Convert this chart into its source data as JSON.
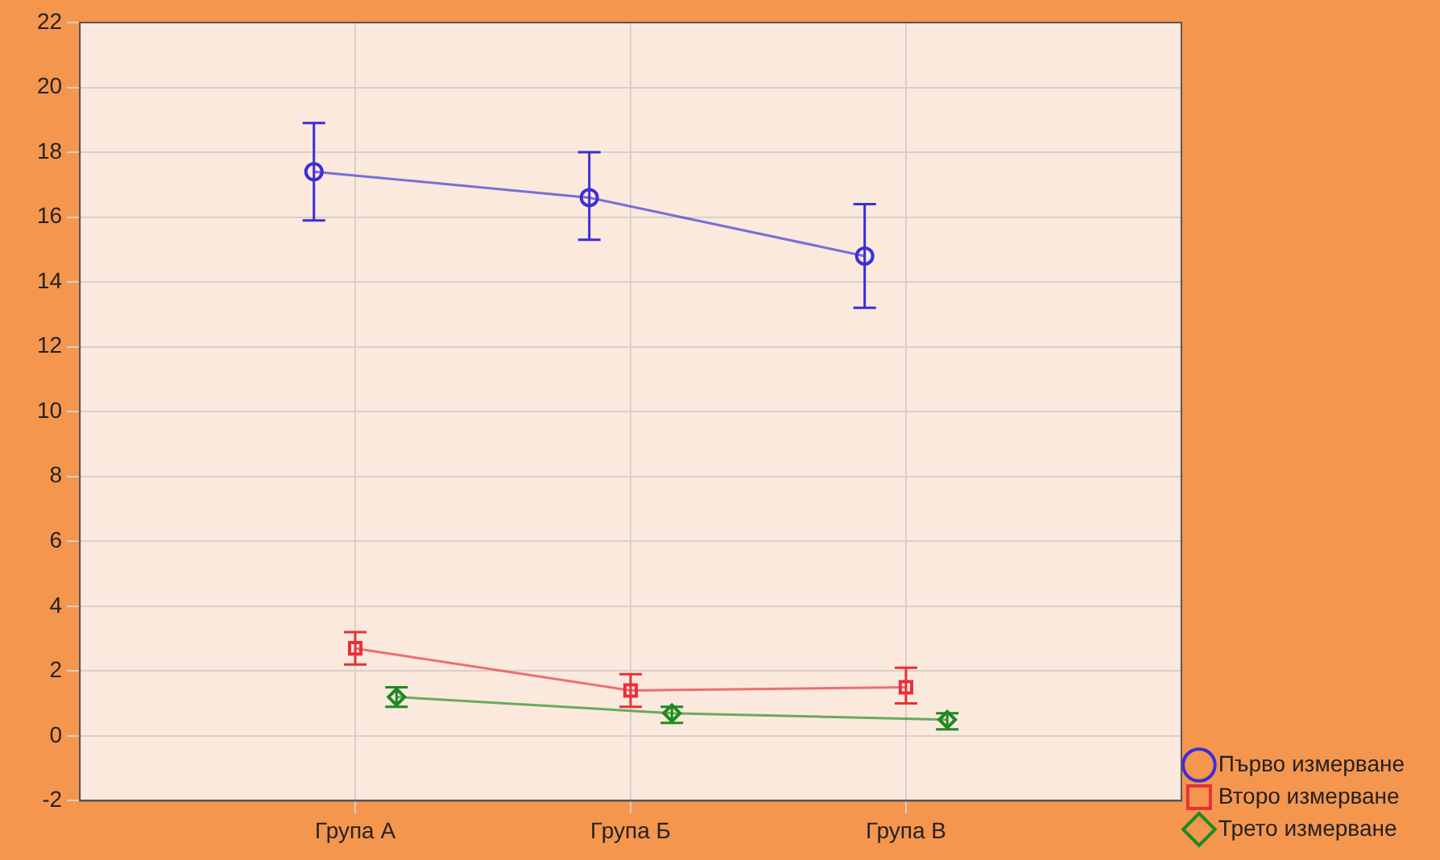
{
  "chart_data": {
    "type": "line",
    "categories": [
      "Група А",
      "Група Б",
      "Група В"
    ],
    "series": [
      {
        "name": "Първо измерване",
        "color": "#3b2fd6",
        "marker": "circle",
        "values": [
          17.4,
          16.6,
          14.8
        ],
        "errors": [
          [
            15.9,
            18.9
          ],
          [
            15.3,
            18.0
          ],
          [
            13.2,
            16.4
          ]
        ]
      },
      {
        "name": "Второ измерване",
        "color": "#e8303a",
        "marker": "square",
        "values": [
          2.7,
          1.4,
          1.5
        ],
        "errors": [
          [
            2.2,
            3.2
          ],
          [
            0.9,
            1.9
          ],
          [
            1.0,
            2.1
          ]
        ]
      },
      {
        "name": "Трето измерване",
        "color": "#1e8a22",
        "marker": "diamond",
        "values": [
          1.2,
          0.7,
          0.5
        ],
        "errors": [
          [
            0.9,
            1.5
          ],
          [
            0.4,
            0.9
          ],
          [
            0.2,
            0.7
          ]
        ]
      }
    ],
    "ylim": [
      -2,
      22
    ],
    "yticks": [
      -2,
      0,
      2,
      4,
      6,
      8,
      10,
      12,
      14,
      16,
      18,
      20,
      22
    ],
    "grid": true,
    "legend": "bottom right",
    "line_style": "solid"
  }
}
